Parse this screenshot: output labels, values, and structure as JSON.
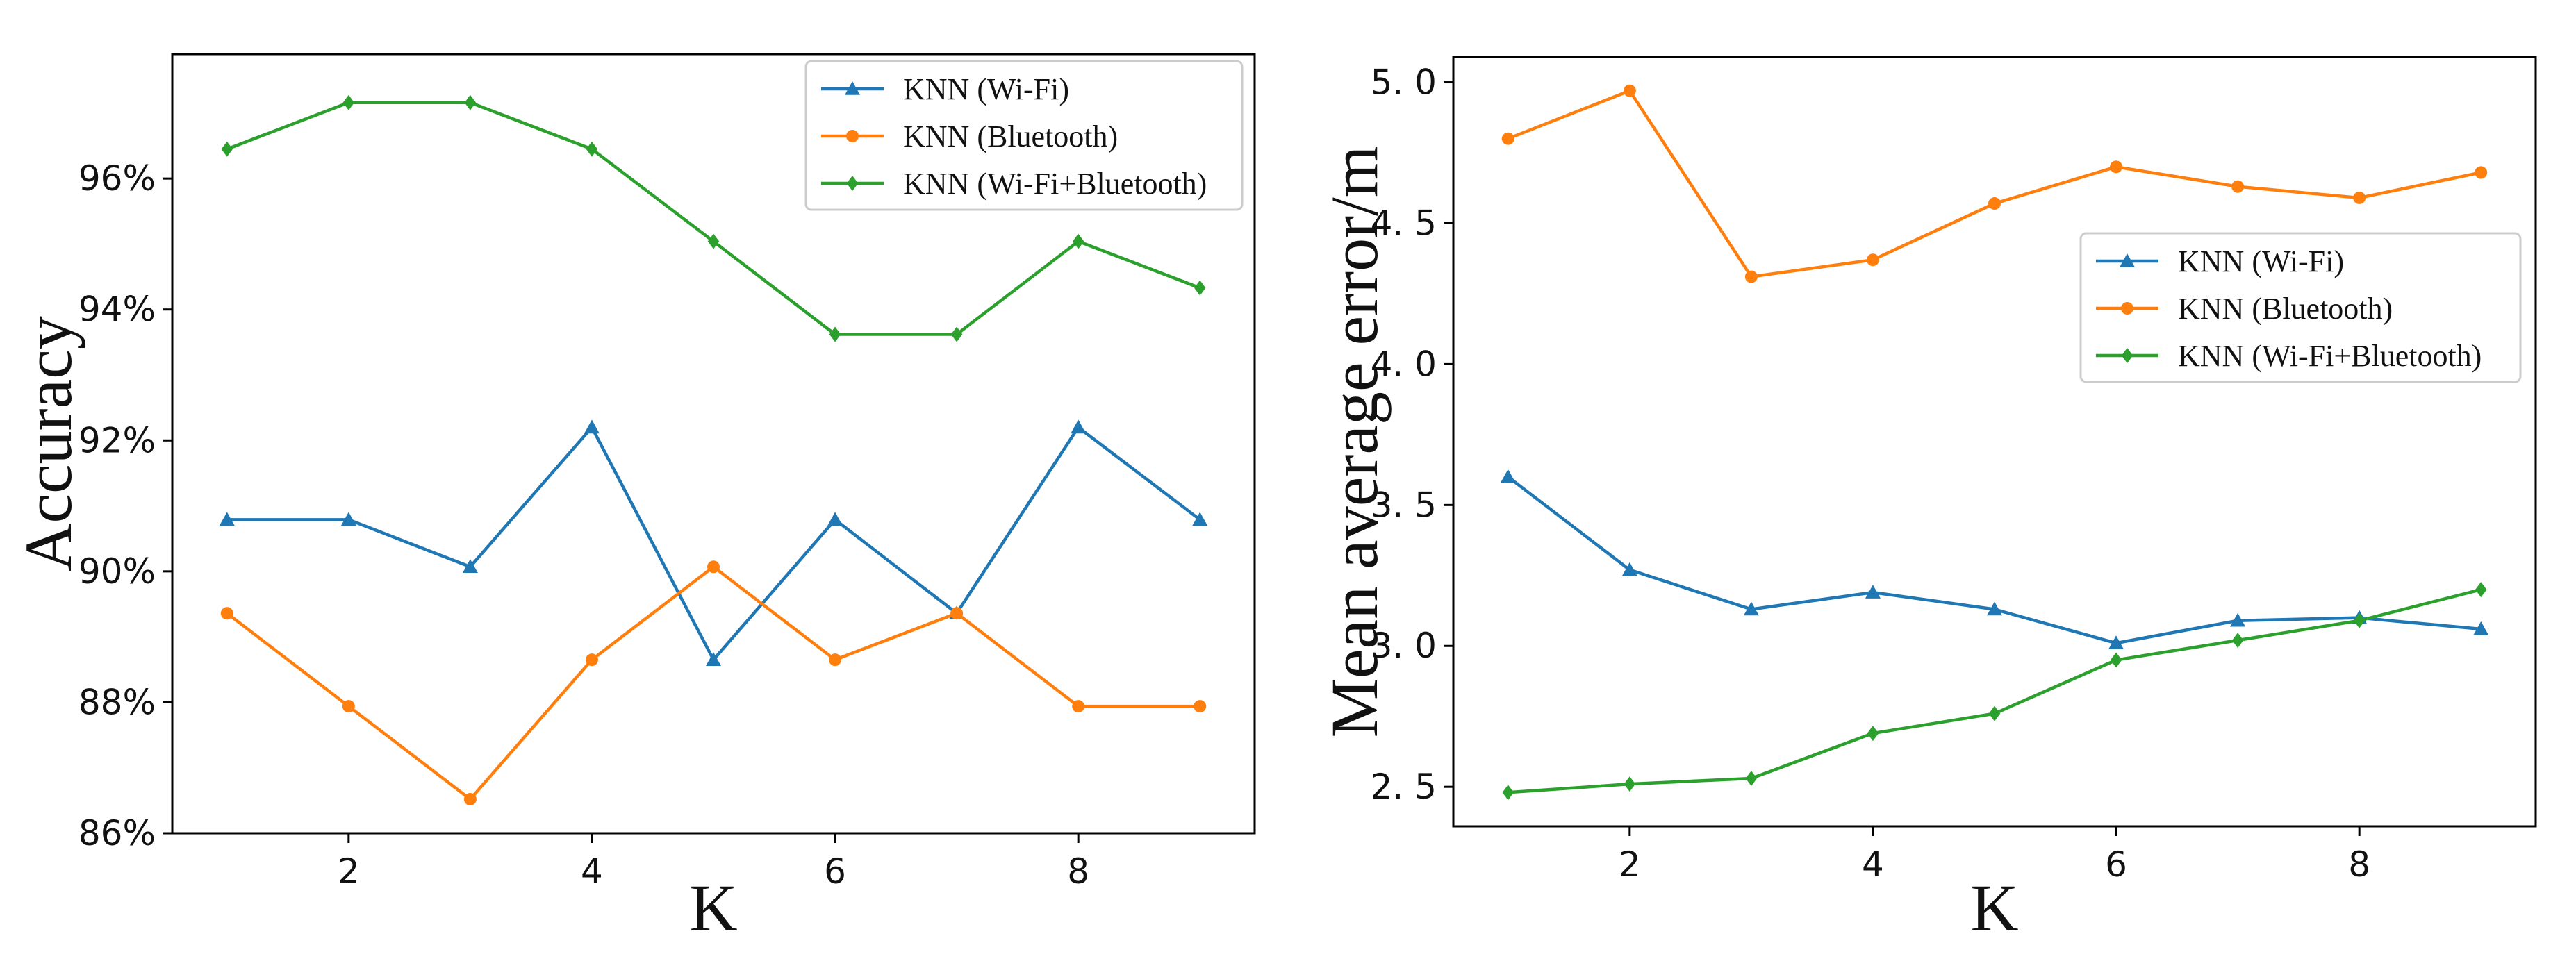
{
  "colors": {
    "wifi": "#1f77b4",
    "bluetooth": "#ff7f0e",
    "combined": "#2ca02c"
  },
  "chart_data": [
    {
      "type": "line",
      "title": "",
      "xlabel": "K",
      "ylabel": "Accuracy",
      "x": [
        1,
        2,
        3,
        4,
        5,
        6,
        7,
        8,
        9
      ],
      "xlim": [
        0.55,
        9.45
      ],
      "ylim": [
        86.0,
        97.9
      ],
      "xticks": [
        2,
        4,
        6,
        8
      ],
      "xtick_labels": [
        "2",
        "4",
        "6",
        "8"
      ],
      "yticks": [
        86,
        88,
        90,
        92,
        94,
        96
      ],
      "ytick_labels": [
        "86%",
        "88%",
        "90%",
        "92%",
        "94%",
        "96%"
      ],
      "grid": false,
      "legend_position": "top-right",
      "series": [
        {
          "name": "KNN (Wi-Fi)",
          "marker": "triangle",
          "color_key": "wifi",
          "values": [
            90.79,
            90.79,
            90.07,
            92.2,
            88.65,
            90.79,
            89.36,
            92.2,
            90.79
          ]
        },
        {
          "name": "KNN (Bluetooth)",
          "marker": "circle",
          "color_key": "bluetooth",
          "values": [
            89.36,
            87.94,
            86.52,
            88.65,
            90.07,
            88.65,
            89.36,
            87.94,
            87.94
          ]
        },
        {
          "name": "KNN (Wi-Fi+Bluetooth)",
          "marker": "diamond",
          "color_key": "combined",
          "values": [
            96.45,
            97.16,
            97.16,
            96.45,
            95.04,
            93.62,
            93.62,
            95.04,
            94.33
          ]
        }
      ]
    },
    {
      "type": "line",
      "title": "",
      "xlabel": "K",
      "ylabel": "Mean average error/m",
      "x": [
        1,
        2,
        3,
        4,
        5,
        6,
        7,
        8,
        9
      ],
      "xlim": [
        0.55,
        9.45
      ],
      "ylim": [
        2.36,
        5.09
      ],
      "xticks": [
        2,
        4,
        6,
        8
      ],
      "xtick_labels": [
        "2",
        "4",
        "6",
        "8"
      ],
      "yticks": [
        2.5,
        3.0,
        3.5,
        4.0,
        4.5,
        5.0
      ],
      "ytick_labels": [
        "2. 5",
        "3. 0",
        "3. 5",
        "4. 0",
        "4. 5",
        "5. 0"
      ],
      "grid": false,
      "legend_position": "center-right",
      "series": [
        {
          "name": "KNN (Wi-Fi)",
          "marker": "triangle",
          "color_key": "wifi",
          "values": [
            3.6,
            3.27,
            3.13,
            3.19,
            3.13,
            3.01,
            3.09,
            3.1,
            3.06
          ]
        },
        {
          "name": "KNN (Bluetooth)",
          "marker": "circle",
          "color_key": "bluetooth",
          "values": [
            4.8,
            4.97,
            4.31,
            4.37,
            4.57,
            4.7,
            4.63,
            4.59,
            4.68
          ]
        },
        {
          "name": "KNN (Wi-Fi+Bluetooth)",
          "marker": "diamond",
          "color_key": "combined",
          "values": [
            2.48,
            2.51,
            2.53,
            2.69,
            2.76,
            2.95,
            3.02,
            3.09,
            3.2
          ]
        }
      ]
    }
  ]
}
